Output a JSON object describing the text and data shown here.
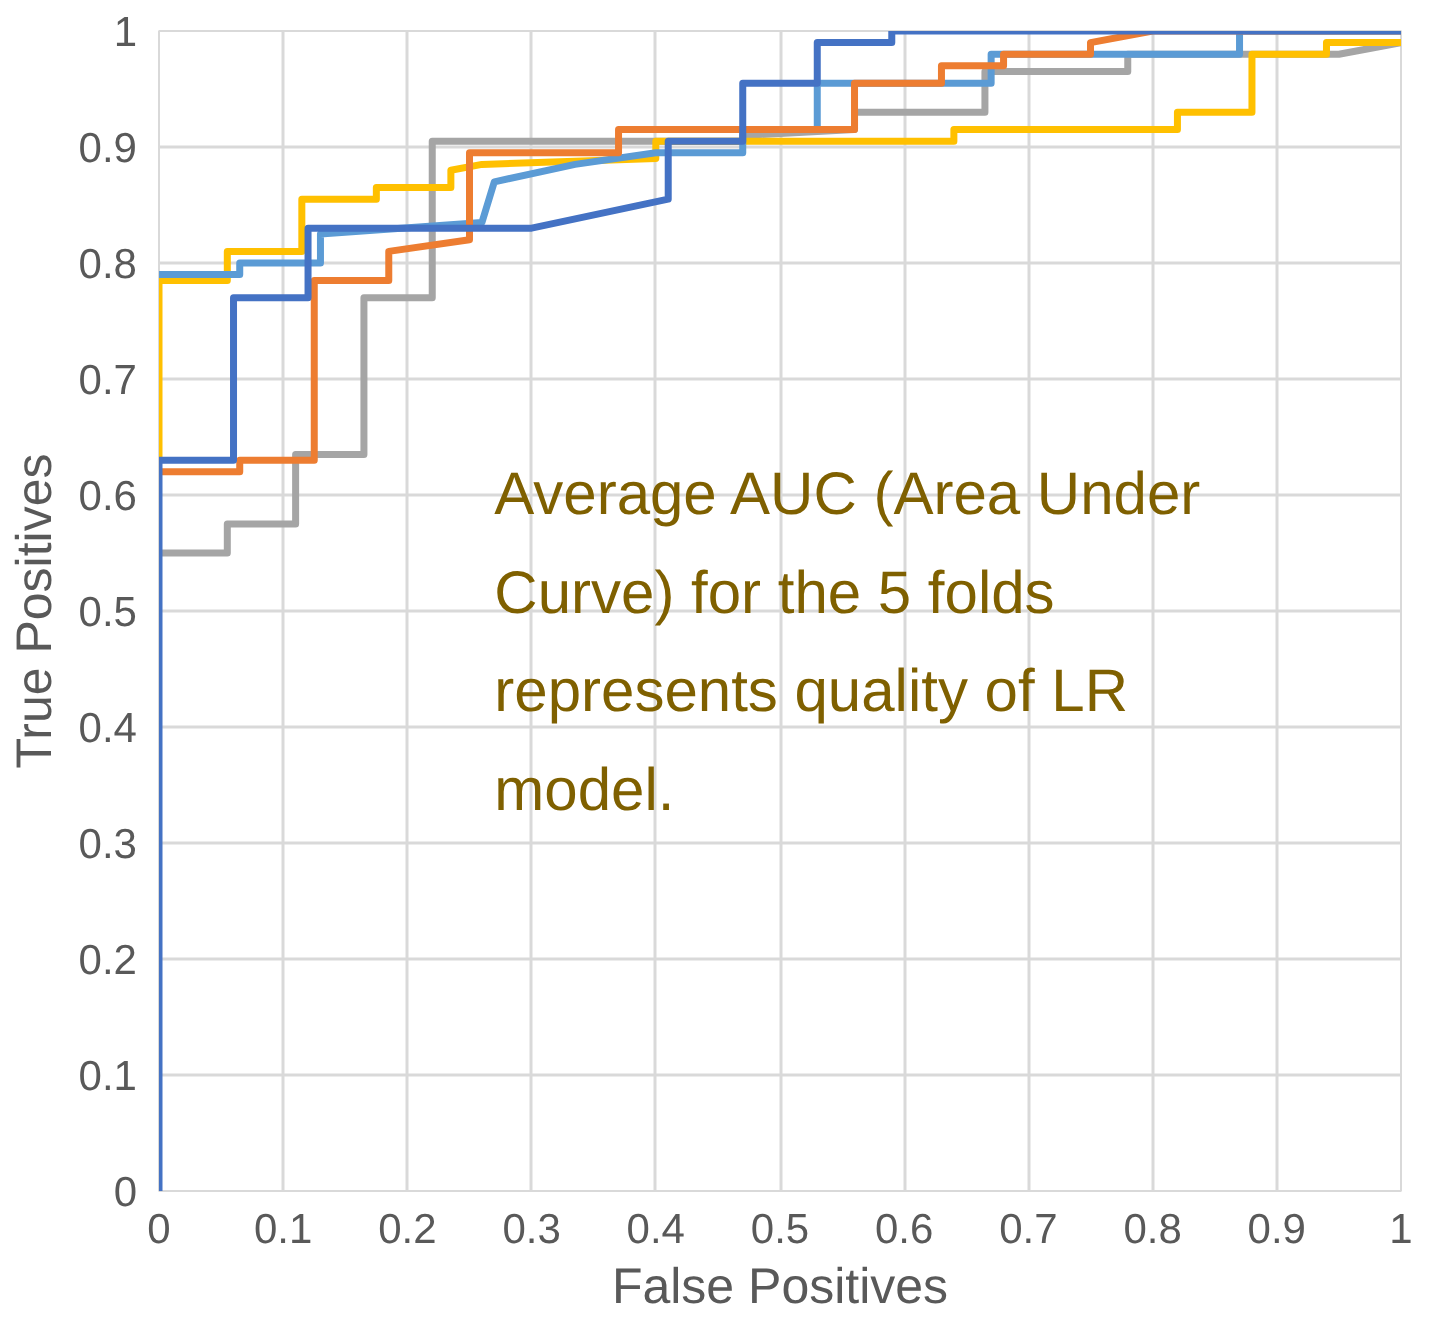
{
  "chart_data": {
    "type": "line",
    "xlabel": "False Positives",
    "ylabel": "True Positives",
    "xlim": [
      0,
      1
    ],
    "ylim": [
      0,
      1
    ],
    "xticks": [
      0,
      0.1,
      0.2,
      0.3,
      0.4,
      0.5,
      0.6,
      0.7,
      0.8,
      0.9,
      1
    ],
    "yticks": [
      0,
      0.1,
      0.2,
      0.3,
      0.4,
      0.5,
      0.6,
      0.7,
      0.8,
      0.9,
      1
    ],
    "grid": true,
    "marker": "none",
    "line_style": "solid",
    "annotations": [
      "Average AUC (Area Under Curve) for the 5 folds represents quality of LR model."
    ],
    "series": [
      {
        "color": "#a5a5a5",
        "x": [
          0,
          0.055,
          0.055,
          0.11,
          0.11,
          0.165,
          0.165,
          0.22,
          0.22,
          0.47,
          0.47,
          0.56,
          0.56,
          0.665,
          0.665,
          0.78,
          0.78,
          0.95,
          1
        ],
        "values": [
          0.55,
          0.55,
          0.575,
          0.575,
          0.635,
          0.635,
          0.77,
          0.77,
          0.905,
          0.905,
          0.91,
          0.915,
          0.93,
          0.93,
          0.965,
          0.965,
          0.98,
          0.98,
          0.99
        ]
      },
      {
        "color": "#ffc000",
        "x": [
          0,
          0,
          0.055,
          0.055,
          0.115,
          0.115,
          0.175,
          0.175,
          0.235,
          0.235,
          0.26,
          0.4,
          0.4,
          0.64,
          0.64,
          0.82,
          0.82,
          0.88,
          0.88,
          0.94,
          0.94,
          1
        ],
        "values": [
          0.63,
          0.785,
          0.785,
          0.81,
          0.81,
          0.855,
          0.855,
          0.865,
          0.865,
          0.88,
          0.885,
          0.89,
          0.905,
          0.905,
          0.915,
          0.915,
          0.93,
          0.93,
          0.98,
          0.98,
          0.99,
          0.99
        ]
      },
      {
        "color": "#5b9bd5",
        "x": [
          0,
          0.065,
          0.065,
          0.13,
          0.13,
          0.26,
          0.27,
          0.335,
          0.4,
          0.47,
          0.47,
          0.53,
          0.53,
          0.67,
          0.67,
          0.87,
          0.87,
          1
        ],
        "values": [
          0.79,
          0.79,
          0.8,
          0.8,
          0.825,
          0.835,
          0.87,
          0.885,
          0.895,
          0.895,
          0.915,
          0.915,
          0.955,
          0.955,
          0.98,
          0.98,
          1,
          1
        ]
      },
      {
        "color": "#ed7d31",
        "x": [
          0,
          0.065,
          0.065,
          0.125,
          0.125,
          0.185,
          0.185,
          0.25,
          0.25,
          0.37,
          0.37,
          0.56,
          0.56,
          0.63,
          0.63,
          0.68,
          0.68,
          0.75,
          0.75,
          0.8,
          1
        ],
        "values": [
          0.62,
          0.62,
          0.63,
          0.63,
          0.785,
          0.785,
          0.81,
          0.82,
          0.895,
          0.895,
          0.915,
          0.915,
          0.955,
          0.955,
          0.97,
          0.97,
          0.98,
          0.98,
          0.99,
          1,
          1
        ]
      },
      {
        "color": "#4472c4",
        "x": [
          0,
          0,
          0.06,
          0.06,
          0.12,
          0.12,
          0.3,
          0.41,
          0.41,
          0.47,
          0.47,
          0.53,
          0.53,
          0.59,
          0.59,
          1
        ],
        "values": [
          0,
          0.63,
          0.63,
          0.77,
          0.77,
          0.83,
          0.83,
          0.855,
          0.905,
          0.905,
          0.955,
          0.955,
          0.99,
          0.99,
          1,
          1
        ]
      }
    ]
  }
}
